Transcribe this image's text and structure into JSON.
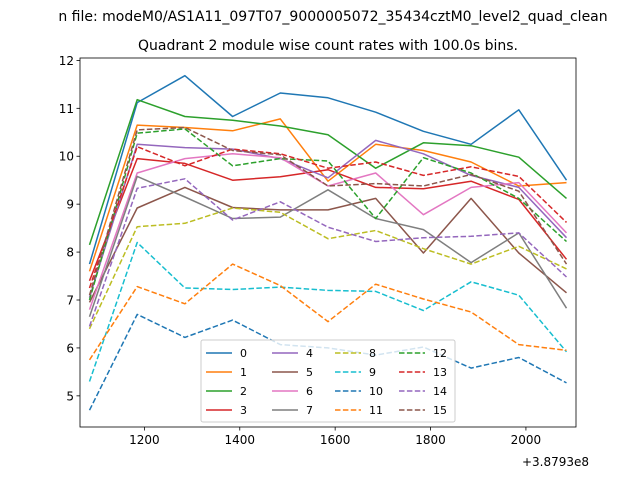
{
  "chart_data": {
    "type": "line",
    "suptitle": "n file: modeM0/AS1A11_097T07_9000005072_35434cztM0_level2_quad_clean",
    "title": "Quadrant 2 module wise count rates with 100.0s bins.",
    "xlabel": "",
    "ylabel": "",
    "x_offset_label": "+3.8793e8",
    "x_offset": 387930000,
    "xlim": [
      387931065,
      387932105
    ],
    "ylim": [
      4.35,
      12.05
    ],
    "x_ticks": [
      1200,
      1400,
      1600,
      1800,
      2000
    ],
    "y_ticks": [
      5,
      6,
      7,
      8,
      9,
      10,
      11,
      12
    ],
    "grid": false,
    "legend_position": "lower-center",
    "legend_columns": 4,
    "x": [
      387931085,
      387931185,
      387931285,
      387931385,
      387931485,
      387931585,
      387931685,
      387931785,
      387931885,
      387931985,
      387932085
    ],
    "series": [
      {
        "name": "0",
        "color": "#1f77b4",
        "dash": "solid",
        "values": [
          7.75,
          11.12,
          11.68,
          10.83,
          11.32,
          11.22,
          10.92,
          10.52,
          10.25,
          10.97,
          9.5
        ]
      },
      {
        "name": "1",
        "color": "#ff7f0e",
        "dash": "solid",
        "values": [
          7.6,
          10.65,
          10.6,
          10.53,
          10.78,
          9.48,
          10.25,
          10.12,
          9.88,
          9.38,
          9.45
        ]
      },
      {
        "name": "2",
        "color": "#2ca02c",
        "dash": "solid",
        "values": [
          8.15,
          11.18,
          10.83,
          10.75,
          10.63,
          10.45,
          9.75,
          10.28,
          10.22,
          9.98,
          9.12
        ]
      },
      {
        "name": "3",
        "color": "#d62728",
        "dash": "solid",
        "values": [
          7.4,
          9.95,
          9.85,
          9.5,
          9.57,
          9.72,
          9.35,
          9.32,
          9.48,
          9.1,
          7.85
        ]
      },
      {
        "name": "4",
        "color": "#9467bd",
        "dash": "solid",
        "values": [
          7.05,
          10.25,
          10.18,
          10.15,
          9.95,
          9.55,
          10.33,
          10.05,
          9.6,
          9.35,
          8.3
        ]
      },
      {
        "name": "5",
        "color": "#8c564b",
        "dash": "solid",
        "values": [
          6.95,
          8.92,
          9.35,
          8.93,
          8.88,
          8.88,
          9.12,
          7.98,
          9.12,
          7.98,
          7.15
        ]
      },
      {
        "name": "6",
        "color": "#e377c2",
        "dash": "solid",
        "values": [
          6.8,
          9.65,
          9.95,
          10.05,
          9.97,
          9.38,
          9.65,
          8.78,
          9.35,
          9.45,
          8.4
        ]
      },
      {
        "name": "7",
        "color": "#7f7f7f",
        "dash": "solid",
        "values": [
          6.65,
          9.58,
          9.15,
          8.7,
          8.73,
          9.3,
          8.7,
          8.47,
          7.78,
          8.4,
          6.83
        ]
      },
      {
        "name": "8",
        "color": "#bcbd22",
        "dash": "dashed",
        "values": [
          6.4,
          8.53,
          8.6,
          8.92,
          8.83,
          8.28,
          8.45,
          8.07,
          7.75,
          8.12,
          7.65
        ]
      },
      {
        "name": "9",
        "color": "#17becf",
        "dash": "dashed",
        "values": [
          5.3,
          8.2,
          7.25,
          7.22,
          7.27,
          7.2,
          7.18,
          6.78,
          7.38,
          7.1,
          5.92
        ]
      },
      {
        "name": "10",
        "color": "#1f77b4",
        "dash": "dashed",
        "values": [
          4.7,
          6.7,
          6.22,
          6.58,
          6.07,
          6.0,
          5.85,
          6.02,
          5.58,
          5.8,
          5.27
        ]
      },
      {
        "name": "11",
        "color": "#ff7f0e",
        "dash": "dashed",
        "values": [
          5.75,
          7.28,
          6.92,
          7.75,
          7.3,
          6.55,
          7.33,
          7.02,
          6.75,
          6.07,
          5.95
        ]
      },
      {
        "name": "12",
        "color": "#2ca02c",
        "dash": "dashed",
        "values": [
          7.0,
          10.48,
          10.57,
          9.8,
          9.95,
          9.9,
          8.7,
          9.97,
          9.65,
          9.12,
          8.22
        ]
      },
      {
        "name": "13",
        "color": "#d62728",
        "dash": "dashed",
        "values": [
          7.25,
          10.2,
          9.8,
          10.15,
          10.05,
          9.75,
          9.88,
          9.6,
          9.78,
          9.58,
          8.62
        ]
      },
      {
        "name": "14",
        "color": "#9467bd",
        "dash": "dashed",
        "values": [
          6.45,
          9.33,
          9.53,
          8.67,
          9.05,
          8.52,
          8.22,
          8.3,
          8.33,
          8.4,
          7.48
        ]
      },
      {
        "name": "15",
        "color": "#8c564b",
        "dash": "dashed",
        "values": [
          7.1,
          10.55,
          10.6,
          10.12,
          10.03,
          9.38,
          9.43,
          9.38,
          9.62,
          9.27,
          7.75
        ]
      }
    ]
  }
}
